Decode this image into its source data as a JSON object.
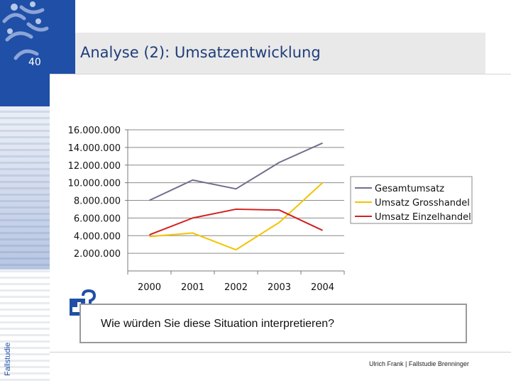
{
  "slide": {
    "page_number": "40",
    "title": "Analyse (2): Umsatzentwicklung",
    "side_label": "Fallstudie",
    "question": "Wie würden Sie diese Situation interpretieren?",
    "footer": "Ulrich Frank | Fallstudie Brenninger"
  },
  "icons": {
    "logo": "logo-figures-icon",
    "question": "question-hand-icon"
  },
  "colors": {
    "brand_blue": "#1f4fa6",
    "header_gray": "#e9e9e9",
    "gesamt": "#6f6f8e",
    "gross": "#f2c400",
    "einzel": "#d42020"
  },
  "chart_data": {
    "type": "line",
    "categories": [
      "2000",
      "2001",
      "2002",
      "2003",
      "2004"
    ],
    "y_ticks": [
      "16.000.000",
      "14.000.000",
      "12.000.000",
      "10.000.000",
      "8.000.000",
      "6.000.000",
      "4.000.000",
      "2.000.000"
    ],
    "ylim": [
      0,
      16000000
    ],
    "grid": "horizontal",
    "legend_position": "right",
    "series": [
      {
        "name": "Gesamtumsatz",
        "values": [
          8000000,
          10300000,
          9300000,
          12300000,
          14500000
        ]
      },
      {
        "name": "Umsatz Grosshandel",
        "values": [
          3900000,
          4300000,
          2400000,
          5500000,
          10000000
        ]
      },
      {
        "name": "Umsatz Einzelhandel",
        "values": [
          4100000,
          6000000,
          7000000,
          6900000,
          4600000
        ]
      }
    ]
  }
}
